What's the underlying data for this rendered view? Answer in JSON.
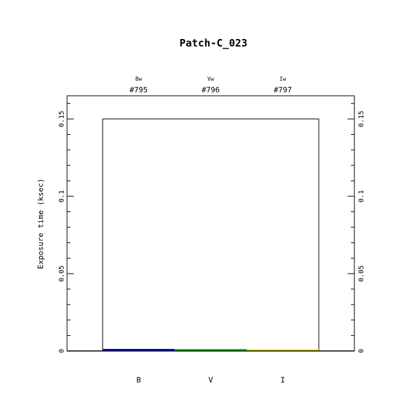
{
  "chart_data": {
    "type": "bar",
    "title": "Patch-C_023",
    "ylabel": "Exposure time (ksec)",
    "xlabel": "",
    "categories": [
      "B",
      "V",
      "I"
    ],
    "filters": [
      "Bw",
      "Vw",
      "Iw"
    ],
    "ids": [
      "#795",
      "#796",
      "#797"
    ],
    "values": [
      0.001,
      0.001,
      0.001
    ],
    "colors": [
      "#0000ff",
      "#00dd00",
      "#ffff00"
    ],
    "total_outline": 0.15,
    "ylim": [
      0,
      0.165
    ],
    "yticks": [
      0,
      0.05,
      0.1,
      0.15
    ],
    "ytick_labels": [
      "0",
      "0.05",
      "0.1",
      "0.15"
    ],
    "grid": false
  }
}
